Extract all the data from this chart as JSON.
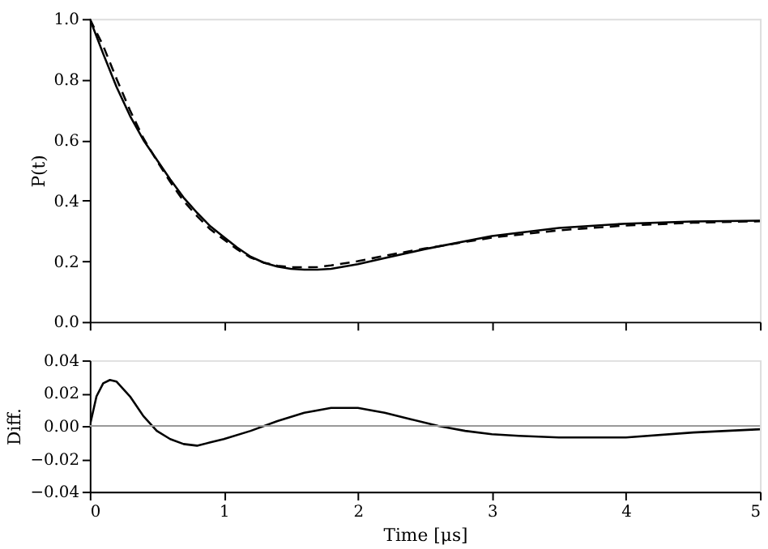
{
  "chart_data": [
    {
      "type": "line",
      "ylabel": "P(t)",
      "tick_labels": "y",
      "grid": false,
      "legend": false,
      "xlim": [
        0,
        5
      ],
      "xticks": [
        0,
        1,
        2,
        3,
        4,
        5
      ],
      "ylim": [
        0,
        1
      ],
      "yticks": [
        {
          "value": 0,
          "label": "0.0"
        },
        {
          "value": 0.2,
          "label": "0.2"
        },
        {
          "value": 0.4,
          "label": "0.4"
        },
        {
          "value": 0.6,
          "label": "0.6"
        },
        {
          "value": 0.8,
          "label": "0.8"
        },
        {
          "value": 1,
          "label": "1.0"
        }
      ],
      "series": [
        {
          "color": "#000000",
          "line_style": "solid",
          "x": [
            0,
            0.1,
            0.2,
            0.3,
            0.4,
            0.5,
            0.6,
            0.7,
            0.8,
            0.9,
            1.0,
            1.1,
            1.2,
            1.3,
            1.4,
            1.5,
            1.6,
            1.7,
            1.8,
            2.0,
            2.2,
            2.5,
            3.0,
            3.5,
            4.0,
            4.5,
            5.0
          ],
          "values": [
            1.0,
            0.885,
            0.775,
            0.68,
            0.6,
            0.535,
            0.47,
            0.41,
            0.36,
            0.315,
            0.28,
            0.245,
            0.215,
            0.195,
            0.182,
            0.175,
            0.172,
            0.172,
            0.175,
            0.19,
            0.21,
            0.24,
            0.283,
            0.31,
            0.324,
            0.331,
            0.334
          ]
        },
        {
          "color": "#000000",
          "line_style": "dashed",
          "x": [
            0,
            0.1,
            0.2,
            0.3,
            0.4,
            0.5,
            0.6,
            0.7,
            0.8,
            0.9,
            1.0,
            1.1,
            1.2,
            1.3,
            1.4,
            1.5,
            1.6,
            1.7,
            1.8,
            2.0,
            2.2,
            2.5,
            3.0,
            3.5,
            4.0,
            4.5,
            5.0
          ],
          "values": [
            1.0,
            0.911,
            0.802,
            0.698,
            0.606,
            0.532,
            0.462,
            0.399,
            0.349,
            0.305,
            0.272,
            0.239,
            0.212,
            0.195,
            0.185,
            0.18,
            0.18,
            0.181,
            0.186,
            0.2,
            0.218,
            0.242,
            0.278,
            0.302,
            0.318,
            0.327,
            0.332
          ]
        }
      ]
    },
    {
      "type": "line",
      "ylabel": "Diff.",
      "xlabel": "Time [μs]",
      "grid": false,
      "legend": false,
      "xlim": [
        0,
        5
      ],
      "xticks": [
        0,
        1,
        2,
        3,
        4,
        5
      ],
      "ylim": [
        -0.04,
        0.04
      ],
      "yticks": [
        {
          "value": -0.04,
          "label": "−0.04"
        },
        {
          "value": -0.02,
          "label": "−0.02"
        },
        {
          "value": 0,
          "label": "0.00"
        },
        {
          "value": 0.02,
          "label": "0.02"
        },
        {
          "value": 0.04,
          "label": "0.04"
        }
      ],
      "ref_lines": [
        {
          "axis": "y",
          "value": 0,
          "color": "#999999"
        }
      ],
      "series": [
        {
          "color": "#000000",
          "line_style": "solid",
          "x": [
            0,
            0.05,
            0.1,
            0.15,
            0.2,
            0.3,
            0.4,
            0.5,
            0.6,
            0.7,
            0.8,
            0.9,
            1.0,
            1.2,
            1.4,
            1.6,
            1.8,
            2.0,
            2.2,
            2.4,
            2.6,
            2.8,
            3.0,
            3.2,
            3.5,
            4.0,
            4.5,
            5.0
          ],
          "values": [
            0,
            0.018,
            0.026,
            0.028,
            0.027,
            0.018,
            0.006,
            -0.003,
            -0.008,
            -0.011,
            -0.012,
            -0.01,
            -0.008,
            -0.003,
            0.003,
            0.008,
            0.011,
            0.011,
            0.008,
            0.004,
            0.0,
            -0.003,
            -0.005,
            -0.006,
            -0.007,
            -0.007,
            -0.004,
            -0.002
          ]
        }
      ]
    }
  ]
}
